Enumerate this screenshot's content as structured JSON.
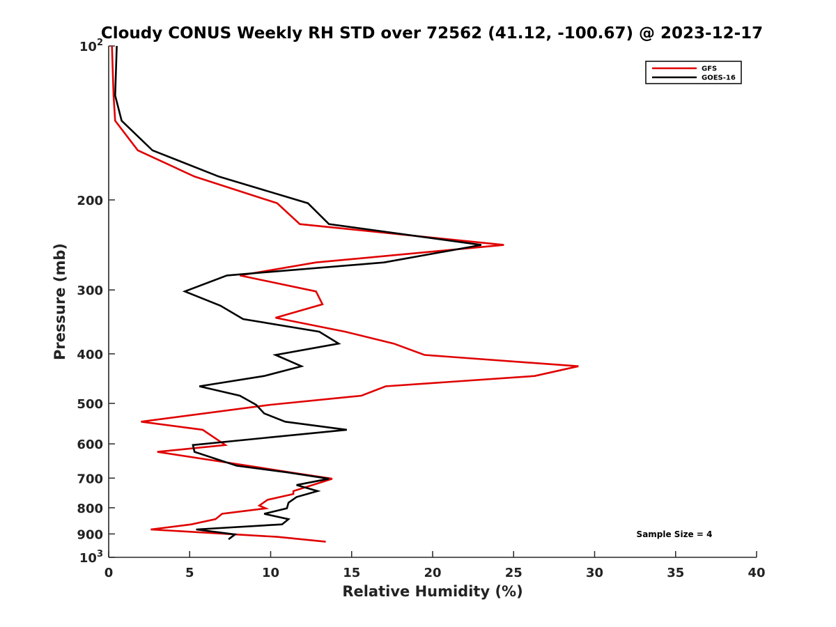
{
  "chart_data": {
    "type": "line",
    "title": "Cloudy CONUS Weekly RH STD over 72562 (41.12, -100.67) @ 2023-12-17",
    "xlabel": "Relative Humidity (%)",
    "ylabel": "Pressure (mb)",
    "xlim": [
      0,
      40
    ],
    "ylim": [
      100,
      1000
    ],
    "y_scale": "log",
    "y_reversed": true,
    "grid": false,
    "legend_position": "top-right",
    "x_ticks": [
      0,
      5,
      10,
      15,
      20,
      25,
      30,
      35,
      40
    ],
    "x_tick_labels": [
      "0",
      "5",
      "10",
      "15",
      "20",
      "25",
      "30",
      "35",
      "40"
    ],
    "y_ticks": [
      {
        "value": 100,
        "base": "10",
        "exp": "2"
      },
      {
        "value": 200,
        "label": "200"
      },
      {
        "value": 300,
        "label": "300"
      },
      {
        "value": 400,
        "label": "400"
      },
      {
        "value": 500,
        "label": "500"
      },
      {
        "value": 600,
        "label": "600"
      },
      {
        "value": 700,
        "label": "700"
      },
      {
        "value": 800,
        "label": "800"
      },
      {
        "value": 900,
        "label": "900"
      },
      {
        "value": 1000,
        "base": "10",
        "exp": "3"
      }
    ],
    "annotation": "Sample Size = 4",
    "series": [
      {
        "name": "GFS",
        "color": "#e00000",
        "points": [
          [
            0.2,
            100
          ],
          [
            0.3,
            125
          ],
          [
            0.4,
            140
          ],
          [
            1.8,
            160
          ],
          [
            5.3,
            180
          ],
          [
            10.4,
            203
          ],
          [
            11.8,
            223
          ],
          [
            24.4,
            245
          ],
          [
            12.8,
            265
          ],
          [
            8.1,
            281
          ],
          [
            12.8,
            302
          ],
          [
            13.2,
            320
          ],
          [
            10.3,
            340
          ],
          [
            14.6,
            362
          ],
          [
            17.6,
            382
          ],
          [
            19.5,
            402
          ],
          [
            29.0,
            423
          ],
          [
            26.3,
            442
          ],
          [
            17.1,
            463
          ],
          [
            15.6,
            483
          ],
          [
            10.0,
            503
          ],
          [
            2.0,
            543
          ],
          [
            5.8,
            563
          ],
          [
            7.2,
            603
          ],
          [
            3.0,
            622
          ],
          [
            8.6,
            662
          ],
          [
            11.2,
            682
          ],
          [
            13.8,
            702
          ],
          [
            11.4,
            742
          ],
          [
            11.4,
            752
          ],
          [
            9.8,
            772
          ],
          [
            9.3,
            792
          ],
          [
            9.7,
            802
          ],
          [
            7.0,
            822
          ],
          [
            6.6,
            842
          ],
          [
            5.1,
            862
          ],
          [
            2.6,
            882
          ],
          [
            10.4,
            912
          ],
          [
            13.4,
            932
          ]
        ]
      },
      {
        "name": "GOES-16",
        "color": "#000000",
        "points": [
          [
            0.5,
            100
          ],
          [
            0.4,
            125
          ],
          [
            0.8,
            140
          ],
          [
            2.7,
            160
          ],
          [
            6.8,
            180
          ],
          [
            12.3,
            203
          ],
          [
            13.6,
            223
          ],
          [
            23.0,
            245
          ],
          [
            17.0,
            265
          ],
          [
            7.3,
            281
          ],
          [
            4.7,
            302
          ],
          [
            6.9,
            322
          ],
          [
            8.3,
            342
          ],
          [
            13.0,
            362
          ],
          [
            14.2,
            382
          ],
          [
            10.3,
            402
          ],
          [
            11.9,
            423
          ],
          [
            9.6,
            442
          ],
          [
            5.6,
            463
          ],
          [
            8.1,
            483
          ],
          [
            9.1,
            503
          ],
          [
            9.6,
            523
          ],
          [
            10.9,
            543
          ],
          [
            14.7,
            563
          ],
          [
            5.2,
            603
          ],
          [
            5.3,
            622
          ],
          [
            7.9,
            662
          ],
          [
            11.0,
            682
          ],
          [
            13.6,
            702
          ],
          [
            11.6,
            722
          ],
          [
            12.9,
            742
          ],
          [
            11.6,
            762
          ],
          [
            11.1,
            782
          ],
          [
            11.0,
            802
          ],
          [
            9.6,
            822
          ],
          [
            11.1,
            842
          ],
          [
            10.7,
            862
          ],
          [
            5.4,
            882
          ],
          [
            7.8,
            902
          ],
          [
            7.4,
            922
          ]
        ]
      }
    ]
  }
}
